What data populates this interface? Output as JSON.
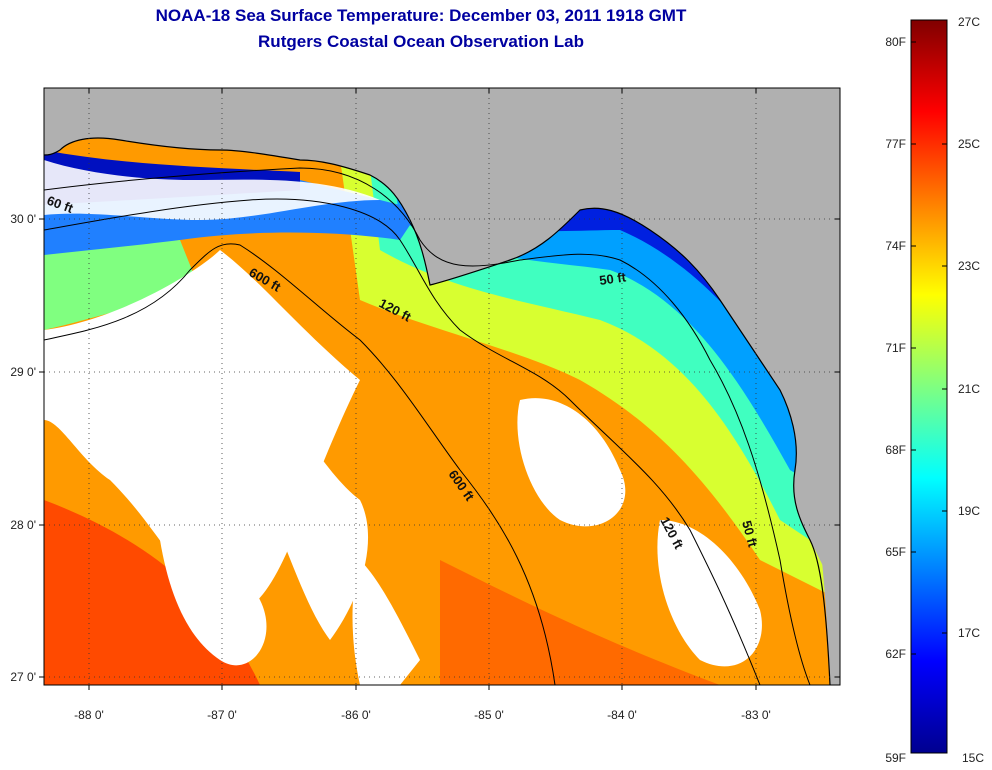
{
  "title": {
    "line1": "NOAA-18 Sea Surface Temperature:  December 03, 2011 1918 GMT",
    "line2": "Rutgers Coastal Ocean Observation Lab"
  },
  "map": {
    "lon_labels": [
      "-88 0'",
      "-87 0'",
      "-86 0'",
      "-85 0'",
      "-84 0'",
      "-83 0'"
    ],
    "lat_labels": [
      "30 0'",
      "29 0'",
      "28 0'",
      "27 0'"
    ],
    "contour_labels": [
      "600 ft",
      "120 ft",
      "50 ft",
      "600 ft",
      "120 ft",
      "50 ft",
      "60 ft"
    ],
    "colors": {
      "land": "#b0b0b0",
      "cloud": "#ffffff",
      "frame": "#000000"
    }
  },
  "colorbar": {
    "f_labels": [
      "80F",
      "77F",
      "74F",
      "71F",
      "68F",
      "65F",
      "62F",
      "59F"
    ],
    "c_labels": [
      "27C",
      "25C",
      "23C",
      "21C",
      "19C",
      "17C",
      "15C"
    ],
    "colormap": [
      "#00008f",
      "#0000ff",
      "#0080ff",
      "#00ffff",
      "#80ff80",
      "#ffff00",
      "#ff8000",
      "#ff0000",
      "#800000"
    ]
  }
}
